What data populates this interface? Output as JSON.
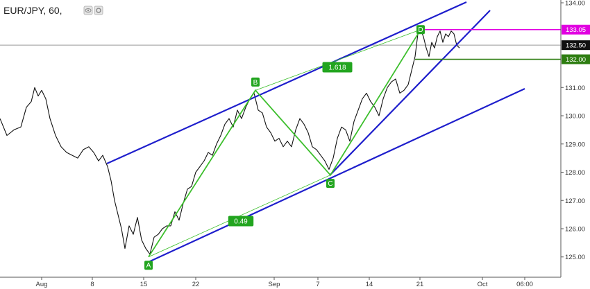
{
  "header": {
    "title": "EUR/JPY, 60,",
    "icons": [
      "eye-icon",
      "settings-icon"
    ]
  },
  "chart_data": {
    "type": "line",
    "symbol": "EUR/JPY",
    "interval": "60",
    "y_ticks": [
      125.0,
      126.0,
      127.0,
      128.0,
      129.0,
      130.0,
      131.0,
      132.0,
      132.5,
      133.05,
      134.0
    ],
    "y_tick_labels": [
      "125.00",
      "126.00",
      "127.00",
      "128.00",
      "129.00",
      "130.00",
      "131.00",
      "132.00",
      "132.50",
      "133.05",
      "134.00"
    ],
    "x_tick_labels": [
      "Aug",
      "8",
      "15",
      "22",
      "Sep",
      "7",
      "14",
      "21",
      "Oct",
      "06:00"
    ],
    "ylim": [
      124.65,
      134.05
    ],
    "series": [
      {
        "values": [
          [
            0,
            129.9
          ],
          [
            10,
            129.3
          ],
          [
            20,
            129.5
          ],
          [
            30,
            129.6
          ],
          [
            38,
            130.3
          ],
          [
            45,
            130.5
          ],
          [
            50,
            131.0
          ],
          [
            55,
            130.7
          ],
          [
            60,
            130.9
          ],
          [
            66,
            130.6
          ],
          [
            72,
            129.9
          ],
          [
            80,
            129.3
          ],
          [
            88,
            128.9
          ],
          [
            96,
            128.7
          ],
          [
            104,
            128.6
          ],
          [
            112,
            128.5
          ],
          [
            120,
            128.8
          ],
          [
            128,
            128.9
          ],
          [
            135,
            128.7
          ],
          [
            142,
            128.4
          ],
          [
            148,
            128.6
          ],
          [
            155,
            128.2
          ],
          [
            160,
            127.7
          ],
          [
            165,
            127.0
          ],
          [
            170,
            126.5
          ],
          [
            175,
            126.0
          ],
          [
            180,
            125.3
          ],
          [
            186,
            126.1
          ],
          [
            192,
            125.8
          ],
          [
            198,
            126.4
          ],
          [
            204,
            125.6
          ],
          [
            210,
            125.3
          ],
          [
            216,
            125.1
          ],
          [
            222,
            125.7
          ],
          [
            228,
            125.8
          ],
          [
            234,
            126.0
          ],
          [
            240,
            126.1
          ],
          [
            246,
            126.1
          ],
          [
            252,
            126.6
          ],
          [
            258,
            126.3
          ],
          [
            264,
            126.9
          ],
          [
            270,
            127.4
          ],
          [
            276,
            127.5
          ],
          [
            282,
            128.0
          ],
          [
            288,
            128.2
          ],
          [
            294,
            128.4
          ],
          [
            300,
            128.7
          ],
          [
            306,
            128.6
          ],
          [
            312,
            129.0
          ],
          [
            318,
            129.3
          ],
          [
            324,
            129.7
          ],
          [
            330,
            129.9
          ],
          [
            336,
            129.6
          ],
          [
            342,
            130.2
          ],
          [
            348,
            129.9
          ],
          [
            354,
            130.3
          ],
          [
            360,
            130.6
          ],
          [
            366,
            130.8
          ],
          [
            372,
            130.2
          ],
          [
            378,
            130.1
          ],
          [
            384,
            129.6
          ],
          [
            390,
            129.4
          ],
          [
            396,
            129.1
          ],
          [
            402,
            129.2
          ],
          [
            408,
            128.9
          ],
          [
            414,
            129.1
          ],
          [
            420,
            128.9
          ],
          [
            426,
            129.5
          ],
          [
            432,
            129.9
          ],
          [
            438,
            129.7
          ],
          [
            444,
            129.4
          ],
          [
            450,
            128.9
          ],
          [
            456,
            128.8
          ],
          [
            462,
            128.6
          ],
          [
            468,
            128.4
          ],
          [
            474,
            128.1
          ],
          [
            480,
            128.5
          ],
          [
            486,
            129.2
          ],
          [
            492,
            129.6
          ],
          [
            498,
            129.5
          ],
          [
            504,
            129.1
          ],
          [
            510,
            129.8
          ],
          [
            516,
            130.2
          ],
          [
            522,
            130.6
          ],
          [
            528,
            130.8
          ],
          [
            534,
            130.5
          ],
          [
            540,
            130.3
          ],
          [
            546,
            130.0
          ],
          [
            552,
            130.6
          ],
          [
            558,
            131.0
          ],
          [
            564,
            131.2
          ],
          [
            570,
            131.3
          ],
          [
            576,
            130.8
          ],
          [
            582,
            130.9
          ],
          [
            588,
            131.1
          ],
          [
            594,
            131.7
          ],
          [
            598,
            132.1
          ],
          [
            602,
            132.9
          ],
          [
            606,
            133.05
          ],
          [
            610,
            132.8
          ],
          [
            614,
            132.4
          ],
          [
            618,
            132.1
          ],
          [
            622,
            132.6
          ],
          [
            626,
            132.4
          ],
          [
            630,
            132.8
          ],
          [
            634,
            133.0
          ],
          [
            638,
            132.6
          ],
          [
            642,
            132.9
          ],
          [
            646,
            132.8
          ],
          [
            650,
            133.0
          ],
          [
            654,
            132.9
          ],
          [
            658,
            132.5
          ],
          [
            662,
            132.4
          ]
        ]
      }
    ],
    "overlays": {
      "pattern_points": [
        {
          "label": "A",
          "value": 125.0
        },
        {
          "label": "B",
          "value": 130.9
        },
        {
          "label": "C",
          "value": 127.9
        },
        {
          "label": "D",
          "value": 133.05
        }
      ],
      "ratios": [
        "1.618",
        "0.49"
      ],
      "price_tags": [
        {
          "value": 133.05,
          "text": "133.05",
          "color": "#e100e1"
        },
        {
          "value": 132.5,
          "text": "132.50",
          "color": "#111111"
        },
        {
          "value": 132.0,
          "text": "132.00",
          "color": "#2e7d11"
        }
      ],
      "colors": {
        "channel": "#1e1ecc",
        "pattern": "#3dbf2d",
        "label_bg": "#22a51f",
        "target_high": "#e100e1",
        "target_low": "#2e7d11",
        "price_line": "#999999"
      }
    }
  }
}
